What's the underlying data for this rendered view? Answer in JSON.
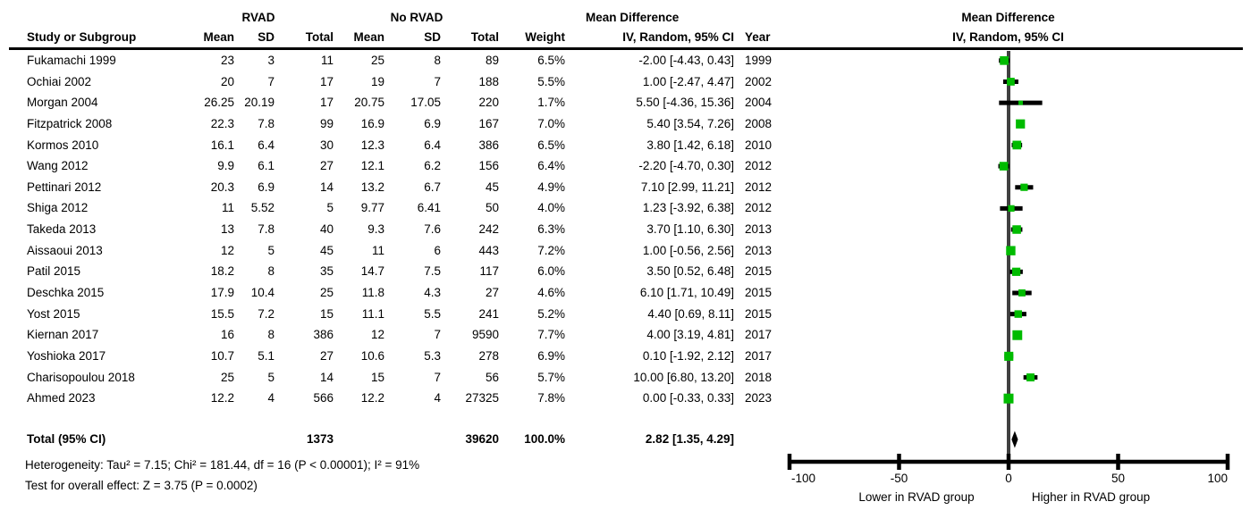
{
  "header": {
    "group1_label": "RVAD",
    "group2_label": "No RVAD",
    "md_title": "Mean Difference",
    "md_subtitle": "IV, Random, 95% CI",
    "plot_title": "Mean Difference",
    "plot_subtitle": "IV, Random, 95% CI",
    "col_study": "Study or Subgroup",
    "col_mean": "Mean",
    "col_sd": "SD",
    "col_total": "Total",
    "col_weight": "Weight",
    "col_year": "Year"
  },
  "studies": [
    {
      "name": "Fukamachi 1999",
      "mean1": "23",
      "sd1": "3",
      "total1": "11",
      "mean2": "25",
      "sd2": "8",
      "total2": "89",
      "weight": "6.5%",
      "ci": "-2.00 [-4.43, 0.43]",
      "year": "1999"
    },
    {
      "name": "Ochiai 2002",
      "mean1": "20",
      "sd1": "7",
      "total1": "17",
      "mean2": "19",
      "sd2": "7",
      "total2": "188",
      "weight": "5.5%",
      "ci": "1.00 [-2.47, 4.47]",
      "year": "2002"
    },
    {
      "name": "Morgan 2004",
      "mean1": "26.25",
      "sd1": "20.19",
      "total1": "17",
      "mean2": "20.75",
      "sd2": "17.05",
      "total2": "220",
      "weight": "1.7%",
      "ci": "5.50 [-4.36, 15.36]",
      "year": "2004"
    },
    {
      "name": "Fitzpatrick 2008",
      "mean1": "22.3",
      "sd1": "7.8",
      "total1": "99",
      "mean2": "16.9",
      "sd2": "6.9",
      "total2": "167",
      "weight": "7.0%",
      "ci": "5.40 [3.54, 7.26]",
      "year": "2008"
    },
    {
      "name": "Kormos 2010",
      "mean1": "16.1",
      "sd1": "6.4",
      "total1": "30",
      "mean2": "12.3",
      "sd2": "6.4",
      "total2": "386",
      "weight": "6.5%",
      "ci": "3.80 [1.42, 6.18]",
      "year": "2010"
    },
    {
      "name": "Wang 2012",
      "mean1": "9.9",
      "sd1": "6.1",
      "total1": "27",
      "mean2": "12.1",
      "sd2": "6.2",
      "total2": "156",
      "weight": "6.4%",
      "ci": "-2.20 [-4.70, 0.30]",
      "year": "2012"
    },
    {
      "name": "Pettinari 2012",
      "mean1": "20.3",
      "sd1": "6.9",
      "total1": "14",
      "mean2": "13.2",
      "sd2": "6.7",
      "total2": "45",
      "weight": "4.9%",
      "ci": "7.10 [2.99, 11.21]",
      "year": "2012"
    },
    {
      "name": "Shiga 2012",
      "mean1": "11",
      "sd1": "5.52",
      "total1": "5",
      "mean2": "9.77",
      "sd2": "6.41",
      "total2": "50",
      "weight": "4.0%",
      "ci": "1.23 [-3.92, 6.38]",
      "year": "2012"
    },
    {
      "name": "Takeda 2013",
      "mean1": "13",
      "sd1": "7.8",
      "total1": "40",
      "mean2": "9.3",
      "sd2": "7.6",
      "total2": "242",
      "weight": "6.3%",
      "ci": "3.70 [1.10, 6.30]",
      "year": "2013"
    },
    {
      "name": "Aissaoui 2013",
      "mean1": "12",
      "sd1": "5",
      "total1": "45",
      "mean2": "11",
      "sd2": "6",
      "total2": "443",
      "weight": "7.2%",
      "ci": "1.00 [-0.56, 2.56]",
      "year": "2013"
    },
    {
      "name": "Patil 2015",
      "mean1": "18.2",
      "sd1": "8",
      "total1": "35",
      "mean2": "14.7",
      "sd2": "7.5",
      "total2": "117",
      "weight": "6.0%",
      "ci": "3.50 [0.52, 6.48]",
      "year": "2015"
    },
    {
      "name": "Deschka 2015",
      "mean1": "17.9",
      "sd1": "10.4",
      "total1": "25",
      "mean2": "11.8",
      "sd2": "4.3",
      "total2": "27",
      "weight": "4.6%",
      "ci": "6.10 [1.71, 10.49]",
      "year": "2015"
    },
    {
      "name": "Yost 2015",
      "mean1": "15.5",
      "sd1": "7.2",
      "total1": "15",
      "mean2": "11.1",
      "sd2": "5.5",
      "total2": "241",
      "weight": "5.2%",
      "ci": "4.40 [0.69, 8.11]",
      "year": "2015"
    },
    {
      "name": "Kiernan 2017",
      "mean1": "16",
      "sd1": "8",
      "total1": "386",
      "mean2": "12",
      "sd2": "7",
      "total2": "9590",
      "weight": "7.7%",
      "ci": "4.00 [3.19, 4.81]",
      "year": "2017"
    },
    {
      "name": "Yoshioka 2017",
      "mean1": "10.7",
      "sd1": "5.1",
      "total1": "27",
      "mean2": "10.6",
      "sd2": "5.3",
      "total2": "278",
      "weight": "6.9%",
      "ci": "0.10 [-1.92, 2.12]",
      "year": "2017"
    },
    {
      "name": "Charisopoulou 2018",
      "mean1": "25",
      "sd1": "5",
      "total1": "14",
      "mean2": "15",
      "sd2": "7",
      "total2": "56",
      "weight": "5.7%",
      "ci": "10.00 [6.80, 13.20]",
      "year": "2018"
    },
    {
      "name": "Ahmed 2023",
      "mean1": "12.2",
      "sd1": "4",
      "total1": "566",
      "mean2": "12.2",
      "sd2": "4",
      "total2": "27325",
      "weight": "7.8%",
      "ci": "0.00 [-0.33, 0.33]",
      "year": "2023"
    }
  ],
  "total_row": {
    "label": "Total (95% CI)",
    "total1": "1373",
    "total2": "39620",
    "weight": "100.0%",
    "ci": "2.82 [1.35, 4.29]"
  },
  "footnotes": {
    "heterogeneity": "Heterogeneity: Tau² = 7.15; Chi² = 181.44, df = 16 (P < 0.00001); I² = 91%",
    "overall_effect": "Test for overall effect: Z = 3.75 (P = 0.0002)"
  },
  "chart_data": {
    "type": "scatter",
    "subtype": "forest-plot",
    "title": "Mean Difference",
    "subtitle": "IV, Random, 95% CI",
    "xlim": [
      -100,
      100
    ],
    "x_ticks": [
      -100,
      -50,
      0,
      50,
      100
    ],
    "x_tick_labels": [
      "-100",
      "-50",
      "0",
      "50",
      "100"
    ],
    "xlabel_left": "Lower in RVAD group",
    "xlabel_right": "Higher in RVAD group",
    "grid": false,
    "legend": false,
    "points": [
      {
        "label": "Fukamachi 1999",
        "md": -2.0,
        "lo": -4.43,
        "hi": 0.43,
        "weight": 6.5
      },
      {
        "label": "Ochiai 2002",
        "md": 1.0,
        "lo": -2.47,
        "hi": 4.47,
        "weight": 5.5
      },
      {
        "label": "Morgan 2004",
        "md": 5.5,
        "lo": -4.36,
        "hi": 15.36,
        "weight": 1.7
      },
      {
        "label": "Fitzpatrick 2008",
        "md": 5.4,
        "lo": 3.54,
        "hi": 7.26,
        "weight": 7.0
      },
      {
        "label": "Kormos 2010",
        "md": 3.8,
        "lo": 1.42,
        "hi": 6.18,
        "weight": 6.5
      },
      {
        "label": "Wang 2012",
        "md": -2.2,
        "lo": -4.7,
        "hi": 0.3,
        "weight": 6.4
      },
      {
        "label": "Pettinari 2012",
        "md": 7.1,
        "lo": 2.99,
        "hi": 11.21,
        "weight": 4.9
      },
      {
        "label": "Shiga 2012",
        "md": 1.23,
        "lo": -3.92,
        "hi": 6.38,
        "weight": 4.0
      },
      {
        "label": "Takeda 2013",
        "md": 3.7,
        "lo": 1.1,
        "hi": 6.3,
        "weight": 6.3
      },
      {
        "label": "Aissaoui 2013",
        "md": 1.0,
        "lo": -0.56,
        "hi": 2.56,
        "weight": 7.2
      },
      {
        "label": "Patil 2015",
        "md": 3.5,
        "lo": 0.52,
        "hi": 6.48,
        "weight": 6.0
      },
      {
        "label": "Deschka 2015",
        "md": 6.1,
        "lo": 1.71,
        "hi": 10.49,
        "weight": 4.6
      },
      {
        "label": "Yost 2015",
        "md": 4.4,
        "lo": 0.69,
        "hi": 8.11,
        "weight": 5.2
      },
      {
        "label": "Kiernan 2017",
        "md": 4.0,
        "lo": 3.19,
        "hi": 4.81,
        "weight": 7.7
      },
      {
        "label": "Yoshioka 2017",
        "md": 0.1,
        "lo": -1.92,
        "hi": 2.12,
        "weight": 6.9
      },
      {
        "label": "Charisopoulou 2018",
        "md": 10.0,
        "lo": 6.8,
        "hi": 13.2,
        "weight": 5.7
      },
      {
        "label": "Ahmed 2023",
        "md": 0.0,
        "lo": -0.33,
        "hi": 0.33,
        "weight": 7.8
      }
    ],
    "pooled": {
      "md": 2.82,
      "lo": 1.35,
      "hi": 4.29
    },
    "colors": {
      "marker": "#00bb00",
      "ci_line": "#000000",
      "zero_line": "#404040",
      "axis": "#000000"
    }
  }
}
